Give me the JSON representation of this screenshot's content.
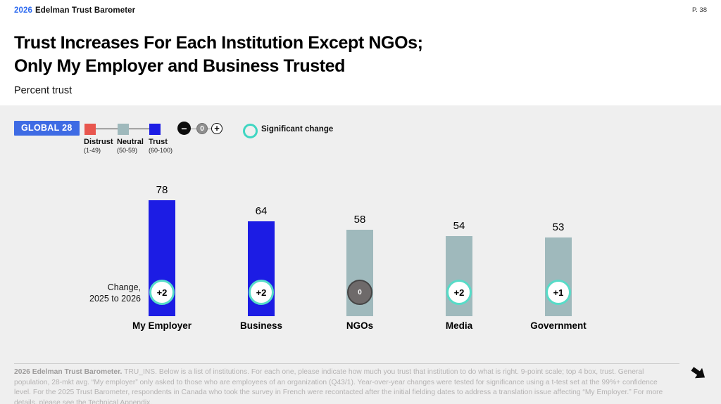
{
  "header": {
    "year": "2026",
    "brand": "Edelman Trust Barometer",
    "page_number": "P. 38"
  },
  "title": {
    "line1": "Trust Increases For Each Institution Except NGOs;",
    "line2": "Only My Employer and Business Trusted"
  },
  "subtitle": "Percent trust",
  "legend": {
    "region_badge": "GLOBAL 28",
    "scale": [
      {
        "label": "Distrust",
        "range": "(1-49)",
        "color": "#e8564e"
      },
      {
        "label": "Neutral",
        "range": "(50-59)",
        "color": "#9fb9bc"
      },
      {
        "label": "Trust",
        "range": "(60-100)",
        "color": "#1c1ce4"
      }
    ],
    "change_symbols": [
      "−",
      "0",
      "+"
    ],
    "significant_change_label": "Significant change",
    "significant_color": "#3fd6c2"
  },
  "chart_data": {
    "type": "bar",
    "title": "Percent trust",
    "categories": [
      "My Employer",
      "Business",
      "NGOs",
      "Media",
      "Government"
    ],
    "values": [
      78,
      64,
      58,
      54,
      53
    ],
    "changes": [
      "+2",
      "+2",
      "0",
      "+2",
      "+1"
    ],
    "significant": [
      true,
      true,
      false,
      true,
      true
    ],
    "bar_colors": [
      "#1c1ce4",
      "#1c1ce4",
      "#9fb9bc",
      "#9fb9bc",
      "#9fb9bc"
    ],
    "trust_color": "#1c1ce4",
    "neutral_color": "#9fb9bc",
    "distrust_color": "#e8564e",
    "ylim": [
      0,
      100
    ],
    "change_label_line1": "Change,",
    "change_label_line2": "2025 to 2026"
  },
  "footer": {
    "bold_prefix": "2026 Edelman Trust Barometer.",
    "text": " TRU_INS. Below is a list of institutions. For each one, please indicate how much you trust that institution to do what is right. 9-point scale; top 4 box, trust. General population, 28-mkt avg. “My employer” only asked to those who are employees of an organization (Q43/1). Year-over-year changes were tested for significance using a t-test set at the 99%+ confidence level. For the 2025 Trust Barometer, respondents in Canada who took the survey in French were recontacted after the initial fielding dates to address a translation issue affecting “My Employer.”  For more details, please see the Technical Appendix."
  }
}
